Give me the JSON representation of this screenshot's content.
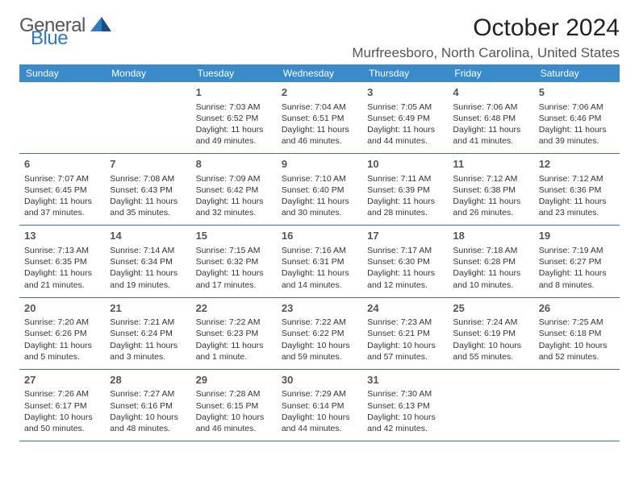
{
  "brand": {
    "word1": "General",
    "word2": "Blue",
    "color_general": "#555555",
    "color_blue": "#2d7bc4",
    "icon_color": "#2d7bc4"
  },
  "title": "October 2024",
  "location": "Murfreesboro, North Carolina, United States",
  "header_bg": "#3b8bca",
  "header_text_color": "#ffffff",
  "row_border_color": "#3b6ea3",
  "background_color": "#ffffff",
  "weekdays": [
    "Sunday",
    "Monday",
    "Tuesday",
    "Wednesday",
    "Thursday",
    "Friday",
    "Saturday"
  ],
  "weeks": [
    [
      null,
      null,
      {
        "n": "1",
        "sunrise": "7:03 AM",
        "sunset": "6:52 PM",
        "daylight": "11 hours and 49 minutes."
      },
      {
        "n": "2",
        "sunrise": "7:04 AM",
        "sunset": "6:51 PM",
        "daylight": "11 hours and 46 minutes."
      },
      {
        "n": "3",
        "sunrise": "7:05 AM",
        "sunset": "6:49 PM",
        "daylight": "11 hours and 44 minutes."
      },
      {
        "n": "4",
        "sunrise": "7:06 AM",
        "sunset": "6:48 PM",
        "daylight": "11 hours and 41 minutes."
      },
      {
        "n": "5",
        "sunrise": "7:06 AM",
        "sunset": "6:46 PM",
        "daylight": "11 hours and 39 minutes."
      }
    ],
    [
      {
        "n": "6",
        "sunrise": "7:07 AM",
        "sunset": "6:45 PM",
        "daylight": "11 hours and 37 minutes."
      },
      {
        "n": "7",
        "sunrise": "7:08 AM",
        "sunset": "6:43 PM",
        "daylight": "11 hours and 35 minutes."
      },
      {
        "n": "8",
        "sunrise": "7:09 AM",
        "sunset": "6:42 PM",
        "daylight": "11 hours and 32 minutes."
      },
      {
        "n": "9",
        "sunrise": "7:10 AM",
        "sunset": "6:40 PM",
        "daylight": "11 hours and 30 minutes."
      },
      {
        "n": "10",
        "sunrise": "7:11 AM",
        "sunset": "6:39 PM",
        "daylight": "11 hours and 28 minutes."
      },
      {
        "n": "11",
        "sunrise": "7:12 AM",
        "sunset": "6:38 PM",
        "daylight": "11 hours and 26 minutes."
      },
      {
        "n": "12",
        "sunrise": "7:12 AM",
        "sunset": "6:36 PM",
        "daylight": "11 hours and 23 minutes."
      }
    ],
    [
      {
        "n": "13",
        "sunrise": "7:13 AM",
        "sunset": "6:35 PM",
        "daylight": "11 hours and 21 minutes."
      },
      {
        "n": "14",
        "sunrise": "7:14 AM",
        "sunset": "6:34 PM",
        "daylight": "11 hours and 19 minutes."
      },
      {
        "n": "15",
        "sunrise": "7:15 AM",
        "sunset": "6:32 PM",
        "daylight": "11 hours and 17 minutes."
      },
      {
        "n": "16",
        "sunrise": "7:16 AM",
        "sunset": "6:31 PM",
        "daylight": "11 hours and 14 minutes."
      },
      {
        "n": "17",
        "sunrise": "7:17 AM",
        "sunset": "6:30 PM",
        "daylight": "11 hours and 12 minutes."
      },
      {
        "n": "18",
        "sunrise": "7:18 AM",
        "sunset": "6:28 PM",
        "daylight": "11 hours and 10 minutes."
      },
      {
        "n": "19",
        "sunrise": "7:19 AM",
        "sunset": "6:27 PM",
        "daylight": "11 hours and 8 minutes."
      }
    ],
    [
      {
        "n": "20",
        "sunrise": "7:20 AM",
        "sunset": "6:26 PM",
        "daylight": "11 hours and 5 minutes."
      },
      {
        "n": "21",
        "sunrise": "7:21 AM",
        "sunset": "6:24 PM",
        "daylight": "11 hours and 3 minutes."
      },
      {
        "n": "22",
        "sunrise": "7:22 AM",
        "sunset": "6:23 PM",
        "daylight": "11 hours and 1 minute."
      },
      {
        "n": "23",
        "sunrise": "7:22 AM",
        "sunset": "6:22 PM",
        "daylight": "10 hours and 59 minutes."
      },
      {
        "n": "24",
        "sunrise": "7:23 AM",
        "sunset": "6:21 PM",
        "daylight": "10 hours and 57 minutes."
      },
      {
        "n": "25",
        "sunrise": "7:24 AM",
        "sunset": "6:19 PM",
        "daylight": "10 hours and 55 minutes."
      },
      {
        "n": "26",
        "sunrise": "7:25 AM",
        "sunset": "6:18 PM",
        "daylight": "10 hours and 52 minutes."
      }
    ],
    [
      {
        "n": "27",
        "sunrise": "7:26 AM",
        "sunset": "6:17 PM",
        "daylight": "10 hours and 50 minutes."
      },
      {
        "n": "28",
        "sunrise": "7:27 AM",
        "sunset": "6:16 PM",
        "daylight": "10 hours and 48 minutes."
      },
      {
        "n": "29",
        "sunrise": "7:28 AM",
        "sunset": "6:15 PM",
        "daylight": "10 hours and 46 minutes."
      },
      {
        "n": "30",
        "sunrise": "7:29 AM",
        "sunset": "6:14 PM",
        "daylight": "10 hours and 44 minutes."
      },
      {
        "n": "31",
        "sunrise": "7:30 AM",
        "sunset": "6:13 PM",
        "daylight": "10 hours and 42 minutes."
      },
      null,
      null
    ]
  ],
  "labels": {
    "sunrise": "Sunrise:",
    "sunset": "Sunset:",
    "daylight": "Daylight:"
  }
}
